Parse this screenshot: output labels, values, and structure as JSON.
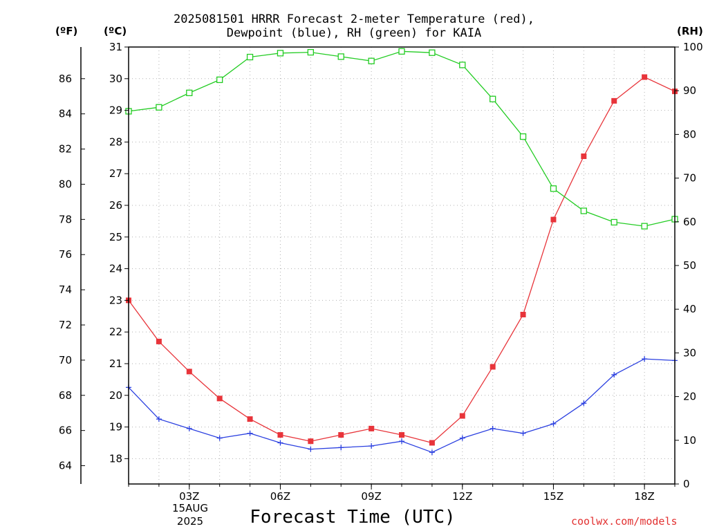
{
  "chart_data": {
    "type": "line",
    "title_lines": [
      "2025081501 HRRR Forecast 2-meter Temperature (red),",
      "Dewpoint (blue), RH (green) for KAIA"
    ],
    "xlabel": "Forecast Time (UTC)",
    "x_hours": [
      1,
      2,
      3,
      4,
      5,
      6,
      7,
      8,
      9,
      10,
      11,
      12,
      13,
      14,
      15,
      16,
      17,
      18,
      19
    ],
    "x_range": [
      1,
      19
    ],
    "x_ticks": [
      3,
      6,
      9,
      12,
      15,
      18
    ],
    "x_tick_labels": [
      "03Z",
      "06Z",
      "09Z",
      "12Z",
      "15Z",
      "18Z"
    ],
    "date_label": [
      "15AUG",
      "2025"
    ],
    "left_units": {
      "f": "(ºF)",
      "c": "(ºC)"
    },
    "right_units": "(RH)",
    "celsius_axis": {
      "range": [
        17.2,
        31
      ],
      "ticks": [
        18,
        19,
        20,
        21,
        22,
        23,
        24,
        25,
        26,
        27,
        28,
        29,
        30,
        31
      ]
    },
    "fahrenheit_axis": {
      "ticks": [
        64,
        66,
        68,
        70,
        72,
        74,
        76,
        78,
        80,
        82,
        84,
        86
      ]
    },
    "rh_axis": {
      "range": [
        0,
        100
      ],
      "ticks": [
        0,
        10,
        20,
        30,
        40,
        50,
        60,
        70,
        80,
        90,
        100
      ]
    },
    "grid": true,
    "series": [
      {
        "name": "Temperature",
        "axis": "celsius",
        "color": "#e8343a",
        "marker": "filled-square",
        "values": [
          23.0,
          21.7,
          20.75,
          19.9,
          19.25,
          18.75,
          18.55,
          18.75,
          18.95,
          18.75,
          18.5,
          19.35,
          20.9,
          22.55,
          25.55,
          27.55,
          29.3,
          30.05,
          29.6
        ]
      },
      {
        "name": "Dewpoint",
        "axis": "celsius",
        "color": "#2a3fe0",
        "marker": "plus",
        "values": [
          20.25,
          19.25,
          18.95,
          18.65,
          18.8,
          18.5,
          18.3,
          18.35,
          18.4,
          18.55,
          18.2,
          18.65,
          18.95,
          18.8,
          19.1,
          19.75,
          20.65,
          21.15,
          21.1
        ]
      },
      {
        "name": "RH",
        "axis": "rh",
        "color": "#22cc22",
        "marker": "open-square",
        "values": [
          85.3,
          86.2,
          89.5,
          92.5,
          97.7,
          98.6,
          98.8,
          97.8,
          96.8,
          99.0,
          98.7,
          95.9,
          88.1,
          79.5,
          67.6,
          62.5,
          59.9,
          59.0,
          60.6
        ]
      }
    ]
  },
  "credit": "coolwx.com/models"
}
